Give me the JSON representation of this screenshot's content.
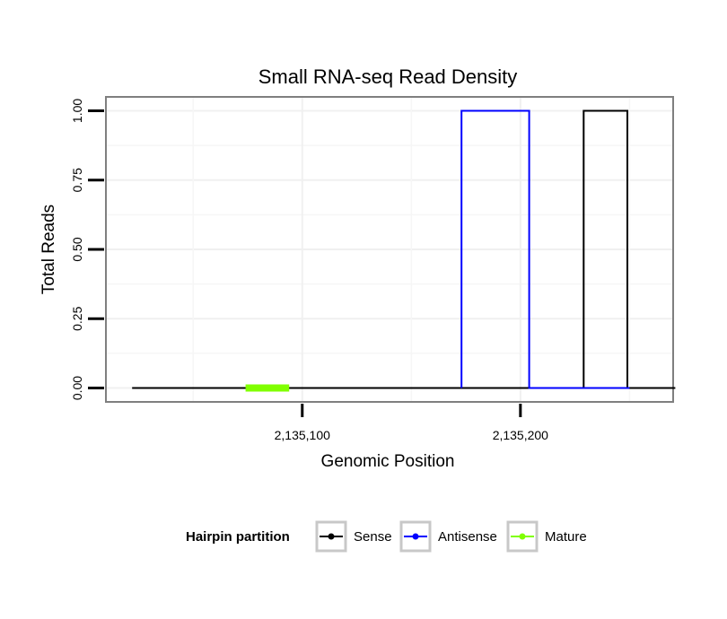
{
  "chart_data": {
    "type": "line",
    "title": "Small RNA-seq Read Density",
    "xlabel": "Genomic Position",
    "ylabel": "Total Reads",
    "xlim": [
      2135010,
      2135270
    ],
    "ylim": [
      -0.05,
      1.05
    ],
    "x_ticks": [
      2135100,
      2135200
    ],
    "x_tick_labels": [
      "2,135,100",
      "2,135,200"
    ],
    "y_ticks": [
      0,
      0.25,
      0.5,
      0.75,
      1.0
    ],
    "y_tick_labels": [
      "0.00",
      "0.25",
      "0.50",
      "0.75",
      "1.00"
    ],
    "grid": true,
    "legend": {
      "title": "Hairpin partition",
      "position": "bottom"
    },
    "series": [
      {
        "name": "Sense",
        "color": "#000000",
        "x": [
          2135022,
          2135229,
          2135229,
          2135249,
          2135249,
          2135271
        ],
        "y": [
          0,
          0,
          1,
          1,
          0,
          0
        ]
      },
      {
        "name": "Antisense",
        "color": "#0000ff",
        "x": [
          2135173,
          2135173,
          2135204,
          2135204,
          2135250
        ],
        "y": [
          0,
          1,
          1,
          0,
          0
        ]
      },
      {
        "name": "Mature",
        "color": "#80ff00",
        "x": [
          2135074,
          2135094
        ],
        "y": [
          0,
          0
        ]
      }
    ]
  }
}
